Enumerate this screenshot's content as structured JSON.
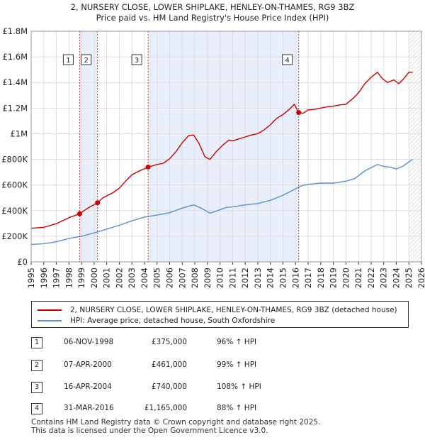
{
  "title": {
    "line1": "2, NURSERY CLOSE, LOWER SHIPLAKE, HENLEY-ON-THAMES, RG9 3BZ",
    "line2": "Price paid vs. HM Land Registry's House Price Index (HPI)"
  },
  "chart_data": {
    "type": "line",
    "title": "2, NURSERY CLOSE, LOWER SHIPLAKE, HENLEY-ON-THAMES, RG9 3BZ — Price paid vs. HM Land Registry's House Price Index (HPI)",
    "xlim": [
      1995,
      2026
    ],
    "ylim": [
      0,
      1800000
    ],
    "x_ticks": [
      1995,
      1996,
      1997,
      1998,
      1999,
      2000,
      2001,
      2002,
      2003,
      2004,
      2005,
      2006,
      2007,
      2008,
      2009,
      2010,
      2011,
      2012,
      2013,
      2014,
      2015,
      2016,
      2017,
      2018,
      2019,
      2020,
      2021,
      2022,
      2023,
      2024,
      2025,
      2026
    ],
    "y_ticks": [
      {
        "value": 0,
        "label": "£0"
      },
      {
        "value": 200000,
        "label": "£200K"
      },
      {
        "value": 400000,
        "label": "£400K"
      },
      {
        "value": 600000,
        "label": "£600K"
      },
      {
        "value": 800000,
        "label": "£800K"
      },
      {
        "value": 1000000,
        "label": "£1M"
      },
      {
        "value": 1200000,
        "label": "£1.2M"
      },
      {
        "value": 1400000,
        "label": "£1.4M"
      },
      {
        "value": 1600000,
        "label": "£1.6M"
      },
      {
        "value": 1800000,
        "label": "£1.8M"
      }
    ],
    "grid": true,
    "shaded_regions": [
      [
        1998.85,
        2000.27
      ],
      [
        2004.29,
        2016.25
      ]
    ],
    "hatched_from": 2025.0,
    "series": [
      {
        "name": "2, NURSERY CLOSE, LOWER SHIPLAKE, HENLEY-ON-THAMES, RG9 3BZ (detached house)",
        "color": "#cc0000",
        "points": [
          [
            1995.0,
            262000
          ],
          [
            1996.0,
            270000
          ],
          [
            1997.0,
            298000
          ],
          [
            1998.0,
            345000
          ],
          [
            1998.85,
            375000
          ],
          [
            1999.5,
            420000
          ],
          [
            2000.27,
            461000
          ],
          [
            2000.7,
            500000
          ],
          [
            2001.5,
            540000
          ],
          [
            2002.0,
            575000
          ],
          [
            2002.5,
            630000
          ],
          [
            2003.0,
            680000
          ],
          [
            2003.5,
            705000
          ],
          [
            2004.29,
            740000
          ],
          [
            2005.0,
            760000
          ],
          [
            2005.5,
            770000
          ],
          [
            2006.0,
            805000
          ],
          [
            2006.5,
            860000
          ],
          [
            2007.0,
            930000
          ],
          [
            2007.5,
            985000
          ],
          [
            2007.9,
            990000
          ],
          [
            2008.3,
            930000
          ],
          [
            2008.8,
            820000
          ],
          [
            2009.2,
            800000
          ],
          [
            2009.7,
            860000
          ],
          [
            2010.2,
            910000
          ],
          [
            2010.7,
            950000
          ],
          [
            2011.0,
            945000
          ],
          [
            2011.5,
            960000
          ],
          [
            2012.0,
            975000
          ],
          [
            2012.5,
            990000
          ],
          [
            2013.0,
            1000000
          ],
          [
            2013.5,
            1030000
          ],
          [
            2014.0,
            1070000
          ],
          [
            2014.5,
            1120000
          ],
          [
            2015.0,
            1150000
          ],
          [
            2015.5,
            1190000
          ],
          [
            2015.9,
            1230000
          ],
          [
            2016.25,
            1165000
          ],
          [
            2016.6,
            1160000
          ],
          [
            2017.0,
            1185000
          ],
          [
            2017.5,
            1190000
          ],
          [
            2018.0,
            1200000
          ],
          [
            2018.5,
            1210000
          ],
          [
            2019.0,
            1215000
          ],
          [
            2019.5,
            1225000
          ],
          [
            2020.0,
            1230000
          ],
          [
            2020.5,
            1270000
          ],
          [
            2021.0,
            1320000
          ],
          [
            2021.5,
            1390000
          ],
          [
            2022.0,
            1440000
          ],
          [
            2022.5,
            1480000
          ],
          [
            2022.9,
            1430000
          ],
          [
            2023.3,
            1400000
          ],
          [
            2023.8,
            1420000
          ],
          [
            2024.2,
            1390000
          ],
          [
            2024.6,
            1430000
          ],
          [
            2025.0,
            1480000
          ],
          [
            2025.3,
            1480000
          ]
        ]
      },
      {
        "name": "HPI: Average price, detached house, South Oxfordshire",
        "color": "#5b8fd0",
        "points": [
          [
            1995.0,
            136000
          ],
          [
            1996.0,
            142000
          ],
          [
            1997.0,
            157000
          ],
          [
            1998.0,
            182000
          ],
          [
            1999.0,
            200000
          ],
          [
            2000.0,
            226000
          ],
          [
            2000.5,
            240000
          ],
          [
            2001.0,
            256000
          ],
          [
            2002.0,
            285000
          ],
          [
            2003.0,
            320000
          ],
          [
            2004.0,
            350000
          ],
          [
            2005.0,
            365000
          ],
          [
            2006.0,
            383000
          ],
          [
            2007.0,
            420000
          ],
          [
            2007.9,
            445000
          ],
          [
            2008.5,
            420000
          ],
          [
            2009.2,
            380000
          ],
          [
            2009.8,
            400000
          ],
          [
            2010.5,
            425000
          ],
          [
            2011.0,
            430000
          ],
          [
            2012.0,
            445000
          ],
          [
            2013.0,
            455000
          ],
          [
            2014.0,
            480000
          ],
          [
            2015.0,
            520000
          ],
          [
            2016.0,
            570000
          ],
          [
            2016.5,
            595000
          ],
          [
            2017.0,
            605000
          ],
          [
            2018.0,
            615000
          ],
          [
            2019.0,
            615000
          ],
          [
            2020.0,
            630000
          ],
          [
            2020.7,
            650000
          ],
          [
            2021.5,
            710000
          ],
          [
            2022.5,
            760000
          ],
          [
            2023.0,
            745000
          ],
          [
            2023.5,
            740000
          ],
          [
            2024.0,
            725000
          ],
          [
            2024.5,
            745000
          ],
          [
            2025.0,
            780000
          ],
          [
            2025.3,
            800000
          ]
        ]
      }
    ],
    "sale_markers": [
      {
        "label": "1",
        "x": 1998.85,
        "y": 375000
      },
      {
        "label": "2",
        "x": 2000.27,
        "y": 461000
      },
      {
        "label": "3",
        "x": 2004.29,
        "y": 740000
      },
      {
        "label": "4",
        "x": 2016.25,
        "y": 1165000
      }
    ]
  },
  "legend": {
    "property": "2, NURSERY CLOSE, LOWER SHIPLAKE, HENLEY-ON-THAMES, RG9 3BZ (detached house)",
    "hpi": "HPI: Average price, detached house, South Oxfordshire"
  },
  "transactions": [
    {
      "num": "1",
      "date": "06-NOV-1998",
      "price": "£375,000",
      "hpi": "96% ↑ HPI"
    },
    {
      "num": "2",
      "date": "07-APR-2000",
      "price": "£461,000",
      "hpi": "99% ↑ HPI"
    },
    {
      "num": "3",
      "date": "16-APR-2004",
      "price": "£740,000",
      "hpi": "108% ↑ HPI"
    },
    {
      "num": "4",
      "date": "31-MAR-2016",
      "price": "£1,165,000",
      "hpi": "88% ↑ HPI"
    }
  ],
  "footer": {
    "line1": "Contains HM Land Registry data © Crown copyright and database right 2025.",
    "line2": "This data is licensed under the Open Government Licence v3.0."
  }
}
